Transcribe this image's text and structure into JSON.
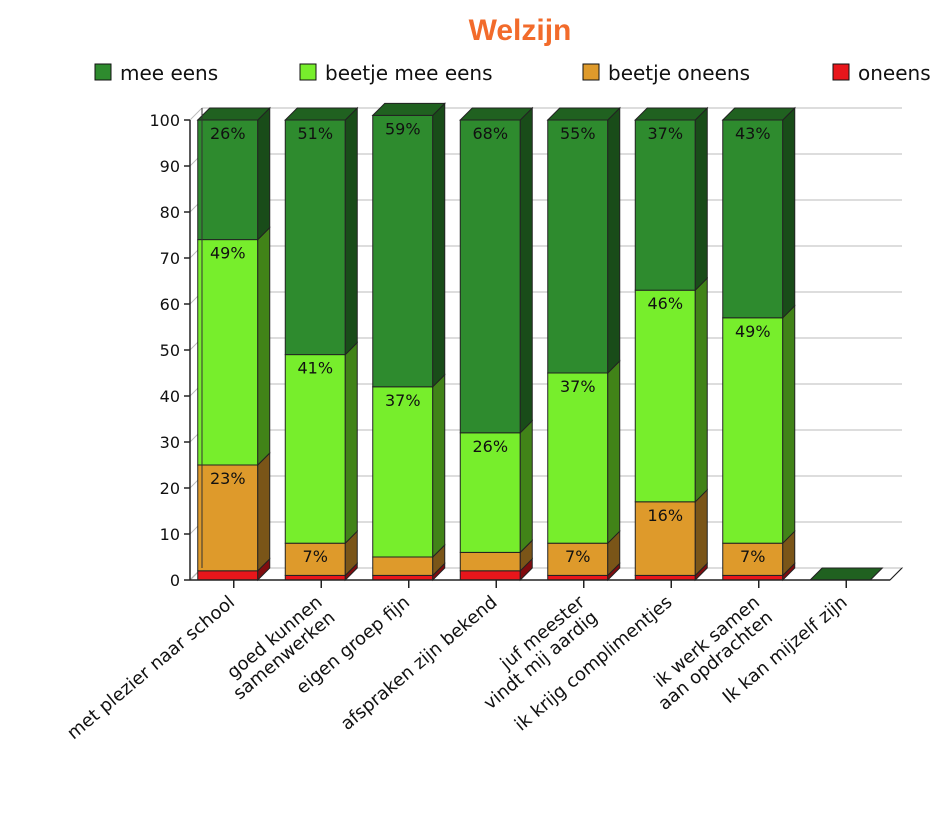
{
  "chart_data": {
    "type": "bar",
    "stacked": true,
    "title": "Welzijn",
    "title_color": "#f26b2b",
    "xlabel": "",
    "ylabel": "",
    "ylim": [
      0,
      100
    ],
    "yticks": [
      "0",
      "10",
      "20",
      "30",
      "40",
      "50",
      "60",
      "70",
      "80",
      "90",
      "100"
    ],
    "legend_position": "top",
    "grid": true,
    "categories": [
      [
        "met plezier naar school"
      ],
      [
        "goed kunnen",
        "samenwerken"
      ],
      [
        "eigen groep fijn"
      ],
      [
        "afspraken zijn bekend"
      ],
      [
        "juf meester",
        "vindt mij aardig"
      ],
      [
        "ik krijg complimentjes"
      ],
      [
        "ik werk samen",
        "aan opdrachten"
      ],
      [
        "Ik kan mijzelf zijn"
      ]
    ],
    "series": [
      {
        "name": "oneens",
        "color": "#e8161b",
        "values": [
          2,
          1,
          1,
          2,
          1,
          1,
          1,
          0
        ],
        "labels": [
          "",
          "",
          "",
          "",
          "",
          "",
          "",
          ""
        ]
      },
      {
        "name": "beetje oneens",
        "color": "#de9a2b",
        "values": [
          23,
          7,
          4,
          4,
          7,
          16,
          7,
          0
        ],
        "labels": [
          "23%",
          "7%",
          "",
          "",
          "7%",
          "16%",
          "7%",
          ""
        ]
      },
      {
        "name": "beetje mee eens",
        "color": "#77ee2c",
        "values": [
          49,
          41,
          37,
          26,
          37,
          46,
          49,
          0
        ],
        "labels": [
          "49%",
          "41%",
          "37%",
          "26%",
          "37%",
          "46%",
          "49%",
          ""
        ]
      },
      {
        "name": "mee eens",
        "color": "#2e8b2e",
        "values": [
          26,
          51,
          59,
          68,
          55,
          37,
          43,
          0
        ],
        "labels": [
          "26%",
          "51%",
          "59%",
          "68%",
          "55%",
          "37%",
          "43%",
          ""
        ]
      }
    ],
    "legend_order": [
      "mee eens",
      "beetje mee eens",
      "beetje oneens",
      "oneens"
    ]
  }
}
